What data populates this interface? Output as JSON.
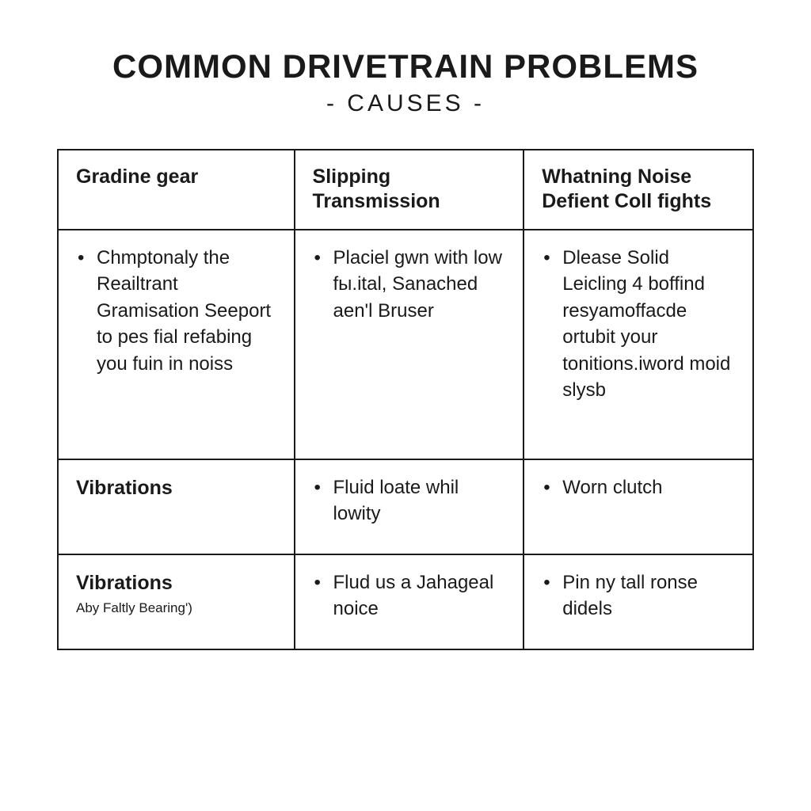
{
  "page": {
    "title": "COMMON DRIVETRAIN PROBLEMS",
    "subtitle": "- CAUSES -",
    "background_color": "#ffffff",
    "text_color": "#1a1a1a",
    "border_color": "#1a1a1a",
    "title_fontsize": 42,
    "subtitle_fontsize": 30
  },
  "table": {
    "type": "table",
    "columns": [
      {
        "label": "Gradine gear",
        "width_pct": 34,
        "fontsize": 25,
        "fontweight": 700
      },
      {
        "label": "Slipping Transmission",
        "width_pct": 33,
        "fontsize": 25,
        "fontweight": 700
      },
      {
        "label": "Whatning Noise Defient Coll fights",
        "width_pct": 33,
        "fontsize": 25,
        "fontweight": 700
      }
    ],
    "rows": [
      {
        "height_class": "tall",
        "cells": [
          {
            "kind": "list",
            "items": [
              "Chmptonaly the Reailtrant Gramisation Seeport to pes fial refabing you fuin in noiss"
            ]
          },
          {
            "kind": "list",
            "items": [
              "Placiel gwn with low fы.ital, Sanached aen'l Bruser"
            ]
          },
          {
            "kind": "list",
            "items": [
              "Dlease Solid Leicling 4 boffind resyamoffacde ortubit your tonitions.iword moid slysb"
            ]
          }
        ]
      },
      {
        "height_class": "mid",
        "cells": [
          {
            "kind": "label",
            "text": "Vibrations",
            "sub": ""
          },
          {
            "kind": "list",
            "items": [
              "Fluid loate whil lowity"
            ]
          },
          {
            "kind": "list",
            "items": [
              "Worn clutch"
            ]
          }
        ]
      },
      {
        "height_class": "short",
        "cells": [
          {
            "kind": "label",
            "text": "Vibrations",
            "sub": "Aby Faltly Bearing')"
          },
          {
            "kind": "list",
            "items": [
              "Flud us a Jahageal noice"
            ]
          },
          {
            "kind": "list",
            "items": [
              "Pin ny tall ronse didels"
            ]
          }
        ]
      }
    ],
    "cell_fontsize": 24,
    "cell_lineheight": 1.4
  }
}
